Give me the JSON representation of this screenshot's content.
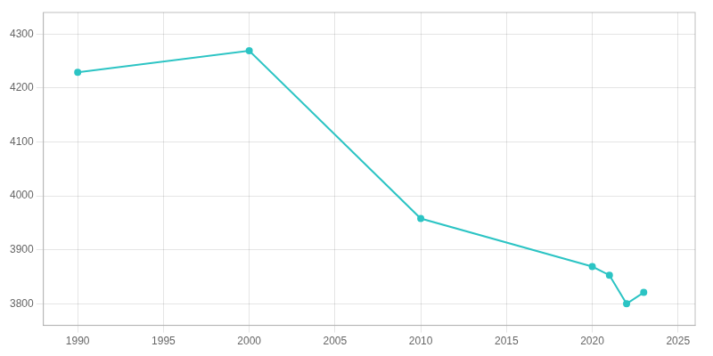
{
  "chart_data": {
    "type": "line",
    "x": [
      1990,
      2000,
      2010,
      2020,
      2021,
      2022,
      2023
    ],
    "values": [
      4229,
      4269,
      3958,
      3869,
      3853,
      3800,
      3821
    ],
    "color": "#2CC4C4",
    "marker": "circle",
    "xlim": [
      1988,
      2026
    ],
    "xticks": [
      1990,
      1995,
      2000,
      2005,
      2010,
      2015,
      2020,
      2025
    ],
    "ylim": [
      3760,
      4340
    ],
    "yticks": [
      3800,
      3900,
      4000,
      4100,
      4200,
      4300
    ],
    "grid": true
  }
}
